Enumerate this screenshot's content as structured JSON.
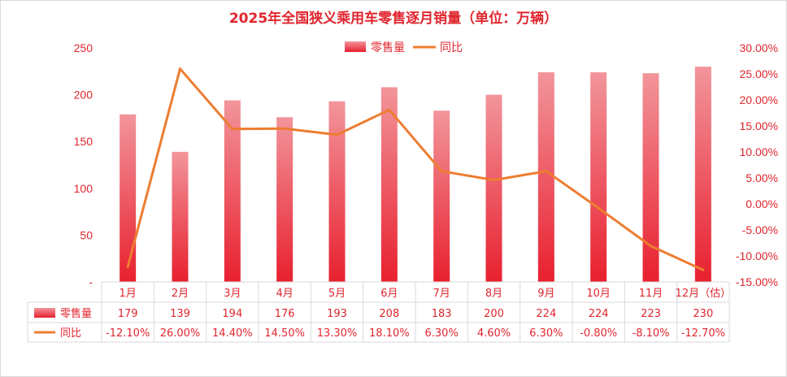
{
  "chart_data": {
    "type": "bar",
    "title": "2025年全国狭义乘用车零售逐月销量（单位：万辆）",
    "categories": [
      "1月",
      "2月",
      "3月",
      "4月",
      "5月",
      "6月",
      "7月",
      "8月",
      "9月",
      "10月",
      "11月",
      "12月（估）"
    ],
    "series": [
      {
        "name": "零售量",
        "type": "bar",
        "axis": "left",
        "values": [
          179,
          139,
          194,
          176,
          193,
          208,
          183,
          200,
          224,
          224,
          223,
          230
        ],
        "labels": [
          "179",
          "139",
          "194",
          "176",
          "193",
          "208",
          "183",
          "200",
          "224",
          "224",
          "223",
          "230"
        ],
        "color": "#e8202f"
      },
      {
        "name": "同比",
        "type": "line",
        "axis": "right",
        "values": [
          -12.1,
          26.0,
          14.4,
          14.5,
          13.3,
          18.1,
          6.3,
          4.6,
          6.3,
          -0.8,
          -8.1,
          -12.7
        ],
        "labels": [
          "-12.10%",
          "26.00%",
          "14.40%",
          "14.50%",
          "13.30%",
          "18.10%",
          "6.30%",
          "4.60%",
          "6.30%",
          "-0.80%",
          "-8.10%",
          "-12.70%"
        ],
        "color": "#ed7d31"
      }
    ],
    "y_left": {
      "min": 0,
      "max": 250,
      "ticks": [
        "-",
        "50",
        "100",
        "150",
        "200",
        "250"
      ]
    },
    "y_right": {
      "min": -15,
      "max": 30,
      "ticks": [
        "-15.00%",
        "-10.00%",
        "-5.00%",
        "0.00%",
        "5.00%",
        "10.00%",
        "15.00%",
        "20.00%",
        "25.00%",
        "30.00%"
      ]
    },
    "legend_position": "top",
    "data_table": true
  }
}
